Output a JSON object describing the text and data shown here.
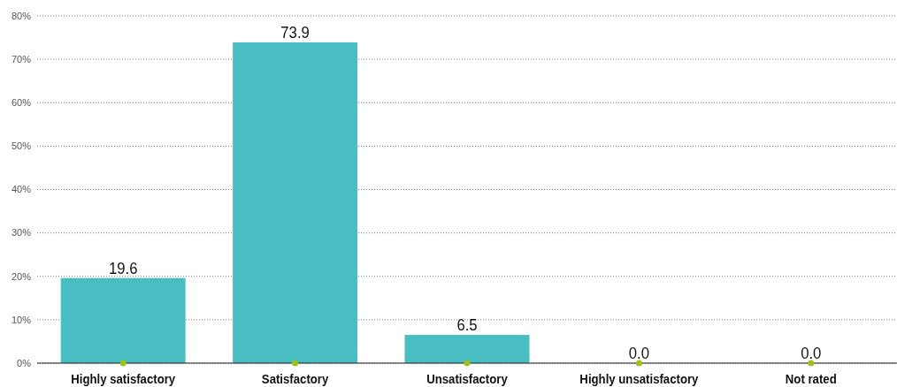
{
  "chart_data": {
    "type": "bar",
    "categories": [
      "Highly satisfactory",
      "Satisfactory",
      "Unsatisfactory",
      "Highly unsatisfactory",
      "Not rated"
    ],
    "values": [
      19.6,
      73.9,
      6.5,
      0.0,
      0.0
    ],
    "color": "#48bdc2",
    "value_labels": [
      "19.6",
      "73.9",
      "6.5",
      "0.0",
      "0.0"
    ],
    "grid": "y",
    "ylim": [
      0,
      80
    ],
    "yticks": [
      {
        "value": 0,
        "label": "0%"
      },
      {
        "value": 10,
        "label": "10%"
      },
      {
        "value": 20,
        "label": "20%"
      },
      {
        "value": 30,
        "label": "30%"
      },
      {
        "value": 40,
        "label": "40%"
      },
      {
        "value": 50,
        "label": "50%"
      },
      {
        "value": 60,
        "label": "60%"
      },
      {
        "value": 70,
        "label": "70%"
      },
      {
        "value": 80,
        "label": "80%"
      }
    ]
  }
}
